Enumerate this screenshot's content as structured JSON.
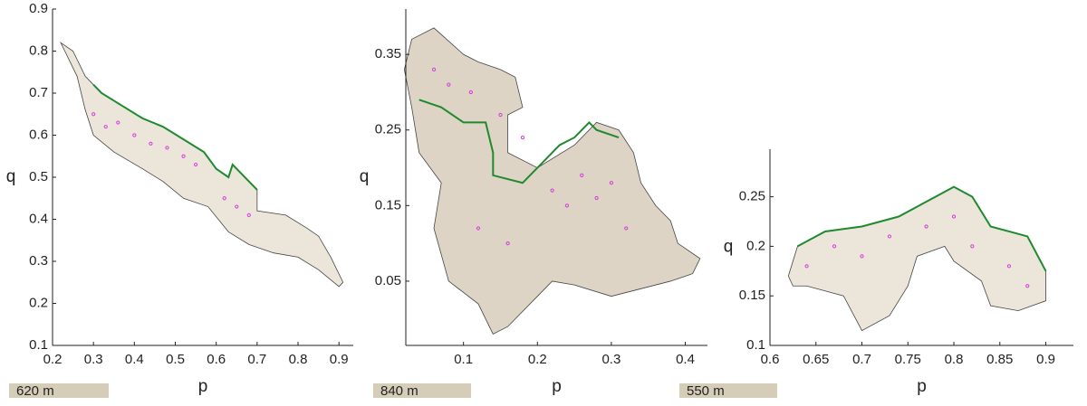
{
  "chart_data": [
    {
      "type": "map",
      "xlabel": "p",
      "ylabel": "q",
      "scale_bar": "620 m",
      "xlim": [
        0.2,
        0.935
      ],
      "ylim": [
        0.1,
        0.9
      ],
      "xticks": [
        0.2,
        0.3,
        0.4,
        0.5,
        0.6,
        0.7,
        0.8,
        0.9
      ],
      "yticks": [
        0.1,
        0.2,
        0.3,
        0.4,
        0.5,
        0.6,
        0.7,
        0.8,
        0.9
      ],
      "fill": "#ece6da",
      "edge_color": "#1e8a2e",
      "point_color": "#d63adf",
      "outline_x": [
        0.22,
        0.25,
        0.28,
        0.3,
        0.32,
        0.37,
        0.42,
        0.47,
        0.52,
        0.57,
        0.6,
        0.63,
        0.64,
        0.66,
        0.7,
        0.7,
        0.77,
        0.82,
        0.85,
        0.88,
        0.91,
        0.9,
        0.85,
        0.8,
        0.74,
        0.68,
        0.63,
        0.58,
        0.52,
        0.47,
        0.42,
        0.35,
        0.3,
        0.28,
        0.26,
        0.23
      ],
      "outline_y": [
        0.82,
        0.8,
        0.74,
        0.72,
        0.7,
        0.67,
        0.64,
        0.62,
        0.59,
        0.56,
        0.52,
        0.5,
        0.53,
        0.51,
        0.47,
        0.42,
        0.41,
        0.38,
        0.36,
        0.31,
        0.25,
        0.24,
        0.28,
        0.31,
        0.32,
        0.34,
        0.37,
        0.43,
        0.45,
        0.49,
        0.52,
        0.56,
        0.6,
        0.66,
        0.74,
        0.8
      ],
      "edge_x": [
        0.3,
        0.32,
        0.37,
        0.42,
        0.47,
        0.52,
        0.57,
        0.6,
        0.63,
        0.64,
        0.66,
        0.7
      ],
      "edge_y": [
        0.72,
        0.7,
        0.67,
        0.64,
        0.62,
        0.59,
        0.56,
        0.52,
        0.5,
        0.53,
        0.51,
        0.47
      ],
      "points_x": [
        0.3,
        0.33,
        0.36,
        0.4,
        0.44,
        0.48,
        0.52,
        0.55,
        0.62,
        0.65,
        0.68
      ],
      "points_y": [
        0.65,
        0.62,
        0.63,
        0.6,
        0.58,
        0.57,
        0.55,
        0.53,
        0.45,
        0.43,
        0.41
      ]
    },
    {
      "type": "map",
      "xlabel": "p",
      "ylabel": "q",
      "scale_bar": "840 m",
      "xlim": [
        0.022,
        0.43
      ],
      "ylim": [
        -0.035,
        0.41
      ],
      "xticks": [
        0.1,
        0.2,
        0.3,
        0.4
      ],
      "yticks": [
        0.05,
        0.15,
        0.25,
        0.35
      ],
      "fill": "#ddd4c5",
      "edge_color": "#1e8a2e",
      "point_color": "#d63adf",
      "outline_x": [
        0.03,
        0.06,
        0.1,
        0.12,
        0.15,
        0.17,
        0.18,
        0.16,
        0.16,
        0.2,
        0.25,
        0.28,
        0.31,
        0.33,
        0.34,
        0.36,
        0.38,
        0.39,
        0.42,
        0.41,
        0.38,
        0.34,
        0.3,
        0.25,
        0.22,
        0.2,
        0.16,
        0.14,
        0.12,
        0.08,
        0.06,
        0.07,
        0.04,
        0.03,
        0.02
      ],
      "outline_y": [
        0.37,
        0.385,
        0.35,
        0.34,
        0.33,
        0.32,
        0.28,
        0.27,
        0.22,
        0.2,
        0.23,
        0.26,
        0.25,
        0.22,
        0.18,
        0.15,
        0.13,
        0.1,
        0.08,
        0.06,
        0.05,
        0.04,
        0.03,
        0.045,
        0.05,
        0.03,
        -0.01,
        -0.02,
        0.02,
        0.05,
        0.12,
        0.18,
        0.22,
        0.28,
        0.33
      ],
      "edge_x": [
        0.04,
        0.07,
        0.1,
        0.13,
        0.14,
        0.14,
        0.18,
        0.21,
        0.23,
        0.25,
        0.27,
        0.28,
        0.31
      ],
      "edge_y": [
        0.29,
        0.28,
        0.26,
        0.26,
        0.22,
        0.19,
        0.18,
        0.21,
        0.23,
        0.24,
        0.26,
        0.25,
        0.24
      ],
      "points_x": [
        0.06,
        0.08,
        0.11,
        0.15,
        0.18,
        0.22,
        0.24,
        0.26,
        0.28,
        0.3,
        0.32,
        0.12,
        0.16
      ],
      "points_y": [
        0.33,
        0.31,
        0.3,
        0.27,
        0.24,
        0.17,
        0.15,
        0.19,
        0.16,
        0.18,
        0.12,
        0.12,
        0.1
      ]
    },
    {
      "type": "map",
      "xlabel": "p",
      "ylabel": "q",
      "scale_bar": "550 m",
      "xlim": [
        0.6,
        0.93
      ],
      "ylim": [
        0.1,
        0.298
      ],
      "xticks": [
        0.6,
        0.65,
        0.7,
        0.75,
        0.8,
        0.85,
        0.9
      ],
      "yticks": [
        0.1,
        0.15,
        0.2,
        0.25
      ],
      "fill": "#ece6da",
      "edge_color": "#1e8a2e",
      "point_color": "#d63adf",
      "outline_x": [
        0.62,
        0.63,
        0.66,
        0.7,
        0.74,
        0.78,
        0.8,
        0.82,
        0.84,
        0.86,
        0.88,
        0.9,
        0.9,
        0.87,
        0.84,
        0.83,
        0.8,
        0.79,
        0.76,
        0.75,
        0.73,
        0.7,
        0.68,
        0.66,
        0.64,
        0.625
      ],
      "outline_y": [
        0.17,
        0.2,
        0.215,
        0.22,
        0.23,
        0.25,
        0.26,
        0.25,
        0.22,
        0.215,
        0.21,
        0.175,
        0.145,
        0.135,
        0.14,
        0.165,
        0.185,
        0.2,
        0.19,
        0.16,
        0.13,
        0.115,
        0.15,
        0.155,
        0.16,
        0.16
      ],
      "edge_x": [
        0.63,
        0.66,
        0.7,
        0.74,
        0.78,
        0.8,
        0.82,
        0.84,
        0.86,
        0.88,
        0.9
      ],
      "edge_y": [
        0.2,
        0.215,
        0.22,
        0.23,
        0.25,
        0.26,
        0.25,
        0.22,
        0.215,
        0.21,
        0.175
      ],
      "points_x": [
        0.64,
        0.67,
        0.7,
        0.73,
        0.77,
        0.8,
        0.82,
        0.86,
        0.88
      ],
      "points_y": [
        0.18,
        0.2,
        0.19,
        0.21,
        0.22,
        0.23,
        0.2,
        0.18,
        0.16
      ]
    }
  ]
}
